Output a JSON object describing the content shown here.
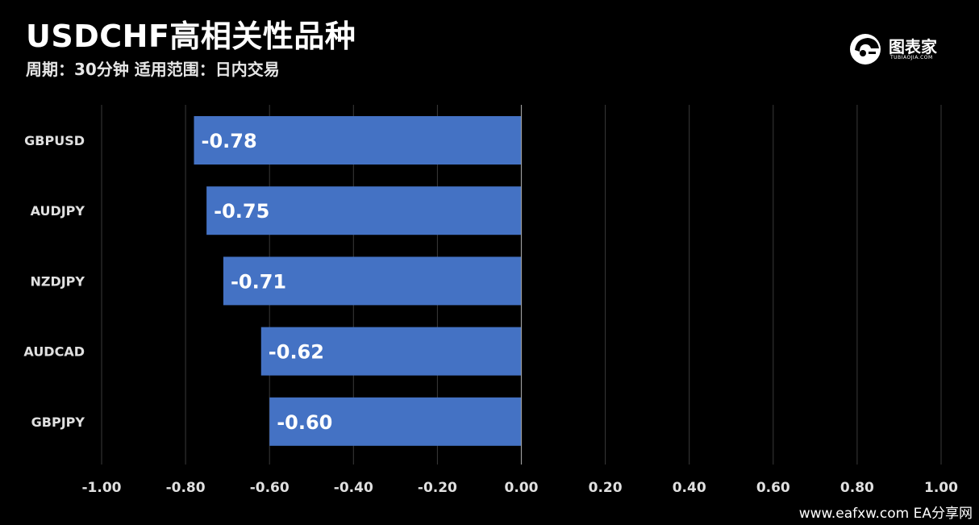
{
  "header": {
    "title": "USDCHF高相关性品种",
    "subtitle": "周期：30分钟 适用范围：日内交易"
  },
  "logo": {
    "name": "图表家",
    "sub": "TUBIAOJIA.COM"
  },
  "watermark": "www.eafxw.com EA分享网",
  "colors": {
    "bar": "#4472c4",
    "background": "#000000",
    "grid": "#3a3a3a",
    "text": "#ffffff"
  },
  "chart_data": {
    "type": "bar",
    "orientation": "horizontal",
    "categories": [
      "GBPUSD",
      "AUDJPY",
      "NZDJPY",
      "AUDCAD",
      "GBPJPY"
    ],
    "values": [
      -0.78,
      -0.75,
      -0.71,
      -0.62,
      -0.6
    ],
    "data_labels": [
      "-0.78",
      "-0.75",
      "-0.71",
      "-0.62",
      "-0.60"
    ],
    "xlim": [
      -1.0,
      1.0
    ],
    "xticks": [
      -1.0,
      -0.8,
      -0.6,
      -0.4,
      -0.2,
      0.0,
      0.2,
      0.4,
      0.6,
      0.8,
      1.0
    ],
    "xtick_labels": [
      "-1.00",
      "-0.80",
      "-0.60",
      "-0.40",
      "-0.20",
      "0.00",
      "0.20",
      "0.40",
      "0.60",
      "0.80",
      "1.00"
    ],
    "grid": true,
    "legend": "none"
  }
}
